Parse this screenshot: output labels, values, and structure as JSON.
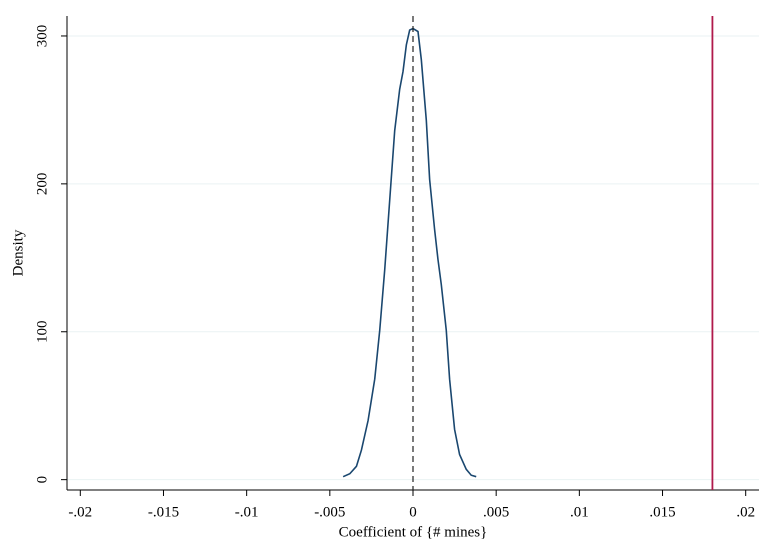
{
  "chart_data": {
    "type": "line",
    "xlabel": "Coefficient of {# mines}",
    "ylabel": "Density",
    "xlim": [
      -0.0208,
      0.0208
    ],
    "ylim": [
      -7,
      313.5
    ],
    "xticks": [
      {
        "value": -0.02,
        "label": "-.02"
      },
      {
        "value": -0.015,
        "label": "-.015"
      },
      {
        "value": -0.01,
        "label": "-.01"
      },
      {
        "value": -0.005,
        "label": "-.005"
      },
      0,
      {
        "value": 0.005,
        "label": ".005"
      },
      {
        "value": 0.01,
        "label": ".01"
      },
      {
        "value": 0.015,
        "label": ".015"
      },
      {
        "value": 0.02,
        "label": ".02"
      }
    ],
    "yticks": [
      0,
      100,
      200,
      300
    ],
    "grid": true,
    "x": [
      -0.0042,
      -0.0038,
      -0.0034,
      -0.0031,
      -0.0027,
      -0.0023,
      -0.002,
      -0.0017,
      -0.0014,
      -0.0011,
      -0.0008,
      -0.0006,
      -0.0004,
      -0.0002,
      0,
      0.0003,
      0.0005,
      0.0008,
      0.001,
      0.0013,
      0.0015,
      0.0017,
      0.002,
      0.0022,
      0.0025,
      0.0028,
      0.0032,
      0.0035,
      0.0038
    ],
    "series": [
      {
        "color": "#1a476f",
        "values": [
          2,
          4,
          9,
          20,
          40,
          68,
          101,
          142,
          189,
          236,
          264,
          276,
          294,
          304,
          305,
          303,
          284,
          243,
          203,
          169,
          149,
          132,
          101,
          68,
          34,
          17,
          7,
          3,
          2
        ]
      }
    ],
    "reference_lines": [
      {
        "x": 0,
        "color": "#222222",
        "dashed": true
      },
      {
        "x": 0.018,
        "color": "#b0194b",
        "dashed": false
      }
    ]
  }
}
